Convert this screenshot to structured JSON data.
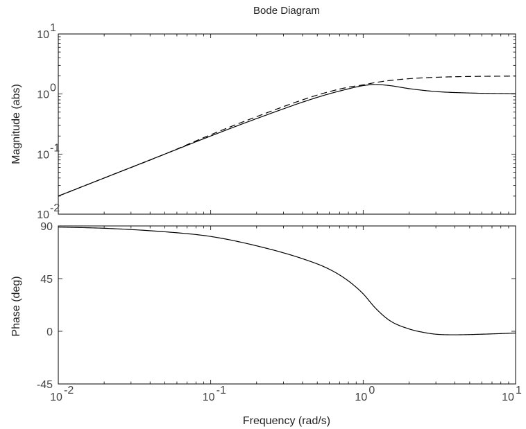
{
  "chart_data": [
    {
      "type": "line",
      "title": "Bode Diagram",
      "xlabel": "",
      "ylabel": "Magnitude (abs)",
      "xscale": "log",
      "yscale": "log",
      "xlim": [
        0.01,
        10
      ],
      "ylim": [
        0.01,
        10
      ],
      "x_ticks": [
        0.01,
        0.1,
        1,
        10
      ],
      "x_tick_labels": [],
      "y_ticks": [
        0.01,
        0.1,
        1,
        10
      ],
      "y_tick_labels": [
        {
          "base": "10",
          "exp": "-2"
        },
        {
          "base": "10",
          "exp": "-1"
        },
        {
          "base": "10",
          "exp": "0"
        },
        {
          "base": "10",
          "exp": "1"
        }
      ],
      "grid": false,
      "series": [
        {
          "style": "solid",
          "x": [
            0.01,
            0.02,
            0.05,
            0.1,
            0.2,
            0.5,
            0.8,
            1.0,
            1.2,
            1.5,
            2.0,
            3.0,
            5.0,
            10.0
          ],
          "values": [
            0.02,
            0.04,
            0.1,
            0.2,
            0.39,
            0.88,
            1.22,
            1.38,
            1.44,
            1.38,
            1.23,
            1.1,
            1.04,
            1.01
          ]
        },
        {
          "style": "dashed",
          "x": [
            0.01,
            0.02,
            0.05,
            0.1,
            0.2,
            0.5,
            0.8,
            1.0,
            1.2,
            1.5,
            2.0,
            3.0,
            5.0,
            10.0
          ],
          "values": [
            0.02,
            0.04,
            0.1,
            0.21,
            0.42,
            0.96,
            1.3,
            1.42,
            1.55,
            1.68,
            1.8,
            1.9,
            1.96,
            1.99
          ]
        }
      ]
    },
    {
      "type": "line",
      "title": "",
      "xlabel": "Frequency  (rad/s)",
      "ylabel": "Phase (deg)",
      "xscale": "log",
      "yscale": "linear",
      "xlim": [
        0.01,
        10
      ],
      "ylim": [
        -45,
        90
      ],
      "x_ticks": [
        0.01,
        0.1,
        1,
        10
      ],
      "x_tick_labels": [
        {
          "base": "10",
          "exp": "-2"
        },
        {
          "base": "10",
          "exp": "-1"
        },
        {
          "base": "10",
          "exp": "0"
        },
        {
          "base": "10",
          "exp": "1"
        }
      ],
      "y_ticks": [
        -45,
        0,
        45,
        90
      ],
      "y_tick_labels": [
        "-45",
        "0",
        "45",
        "90"
      ],
      "grid": false,
      "series": [
        {
          "style": "solid",
          "x": [
            0.01,
            0.02,
            0.05,
            0.1,
            0.2,
            0.4,
            0.6,
            0.8,
            1.0,
            1.2,
            1.5,
            2.0,
            2.5,
            3.0,
            4.0,
            6.0,
            10.0
          ],
          "values": [
            89,
            88,
            85,
            81,
            73,
            62,
            53,
            43,
            32,
            20,
            9,
            2,
            -1,
            -2.5,
            -3,
            -2.5,
            -1.5
          ]
        }
      ]
    }
  ]
}
